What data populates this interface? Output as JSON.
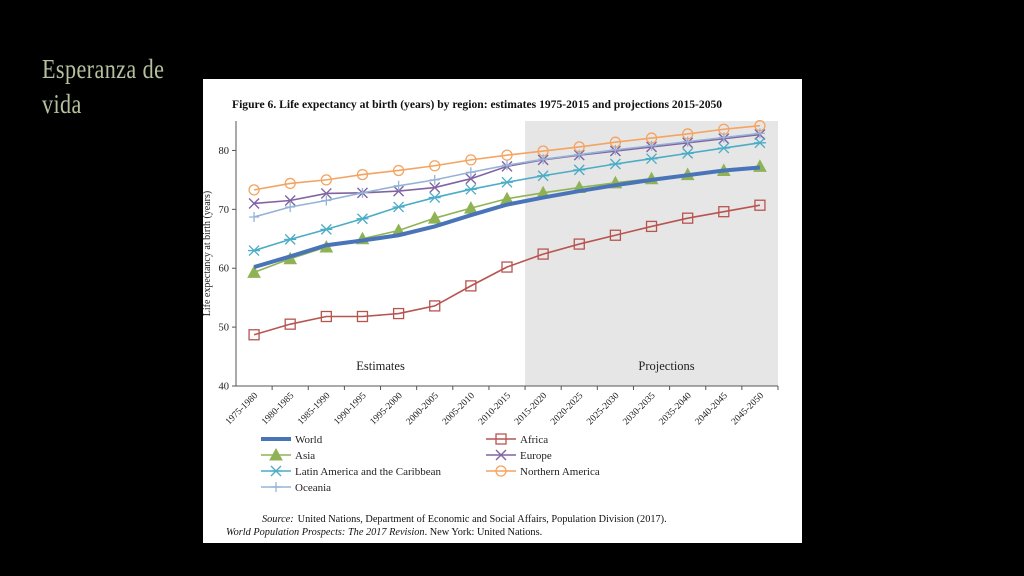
{
  "slide": {
    "title": "Esperanza de vida"
  },
  "chart_data": {
    "type": "line",
    "title": "Figure 6. Life expectancy at birth (years) by region: estimates 1975-2015 and projections 2015-2050",
    "ylabel": "Life expectancy at birth (years)",
    "xlabel": "",
    "ylim": [
      40,
      85
    ],
    "yticks": [
      40,
      50,
      60,
      70,
      80
    ],
    "grid": false,
    "legend_position": "bottom",
    "categories": [
      "1975-1980",
      "1980-1985",
      "1985-1990",
      "1990-1995",
      "1995-2000",
      "2000-2005",
      "2005-2010",
      "2010-2015",
      "2015-2020",
      "2020-2025",
      "2025-2030",
      "2030-2035",
      "2035-2040",
      "2040-2045",
      "2045-2050"
    ],
    "regions": {
      "estimates_label": "Estimates",
      "projections_label": "Projections",
      "projection_start": "2015-2020"
    },
    "series": [
      {
        "name": "World",
        "color": "#4a74b8",
        "marker": "none",
        "values": [
          60.2,
          62.0,
          63.9,
          64.7,
          65.6,
          67.1,
          69.0,
          70.8,
          72.0,
          73.1,
          74.1,
          75.0,
          75.8,
          76.6,
          77.1
        ]
      },
      {
        "name": "Africa",
        "color": "#b85450",
        "marker": "square",
        "values": [
          48.7,
          50.5,
          51.8,
          51.8,
          52.3,
          53.6,
          57.0,
          60.2,
          62.4,
          64.1,
          65.6,
          67.1,
          68.5,
          69.6,
          70.7
        ]
      },
      {
        "name": "Asia",
        "color": "#8fb354",
        "marker": "triangle",
        "values": [
          59.3,
          61.6,
          63.6,
          65.0,
          66.4,
          68.5,
          70.2,
          71.8,
          72.8,
          73.7,
          74.5,
          75.2,
          75.9,
          76.6,
          77.3
        ]
      },
      {
        "name": "Europe",
        "color": "#8064a2",
        "marker": "x",
        "values": [
          71.0,
          71.5,
          72.7,
          72.8,
          73.1,
          73.7,
          75.2,
          77.3,
          78.4,
          79.2,
          79.9,
          80.6,
          81.3,
          82.0,
          82.7
        ]
      },
      {
        "name": "Latin America and the Caribbean",
        "color": "#4bacc6",
        "marker": "asterisk",
        "values": [
          63.0,
          64.9,
          66.6,
          68.4,
          70.4,
          72.0,
          73.4,
          74.6,
          75.7,
          76.7,
          77.7,
          78.6,
          79.5,
          80.4,
          81.3
        ]
      },
      {
        "name": "Northern America",
        "color": "#f4a460",
        "marker": "circle",
        "values": [
          73.3,
          74.4,
          75.0,
          75.9,
          76.6,
          77.4,
          78.4,
          79.2,
          79.9,
          80.6,
          81.4,
          82.1,
          82.8,
          83.6,
          84.2
        ]
      },
      {
        "name": "Oceania",
        "color": "#95b3d7",
        "marker": "plus",
        "values": [
          68.7,
          70.4,
          71.5,
          72.8,
          74.0,
          75.0,
          76.3,
          77.5,
          78.5,
          79.3,
          80.1,
          80.8,
          81.5,
          82.2,
          82.9
        ]
      }
    ],
    "source_line1_label": "Source:",
    "source_line1": "United Nations, Department of Economic and Social Affairs, Population Division (2017).",
    "source_line2_italic": "World Population Prospects: The 2017 Revision",
    "source_line2_rest": ". New York: United Nations."
  }
}
